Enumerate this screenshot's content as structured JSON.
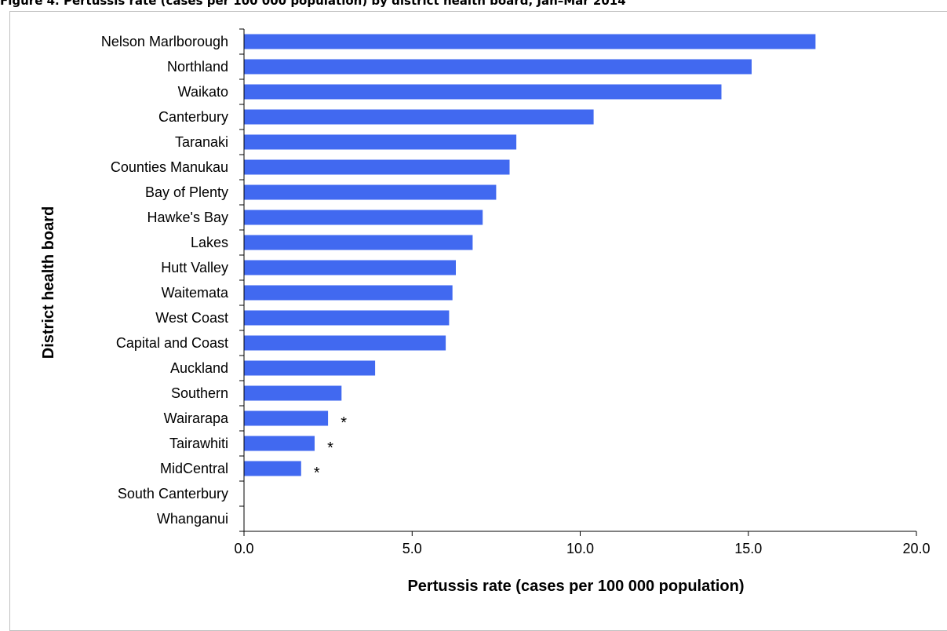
{
  "figure_title": "Figure 4. Pertussis rate (cases per 100 000 population) by district health board, Jan–Mar 2014",
  "colors": {
    "bar": "#4169f0",
    "axis": "#000000"
  },
  "chart_data": {
    "type": "bar",
    "orientation": "horizontal",
    "xlabel": "Pertussis rate (cases per 100 000 population)",
    "ylabel": "District health board",
    "xlim": [
      0,
      20
    ],
    "xticks": [
      "0.0",
      "5.0",
      "10.0",
      "15.0",
      "20.0"
    ],
    "grid": false,
    "categories": [
      "Nelson Marlborough",
      "Northland",
      "Waikato",
      "Canterbury",
      "Taranaki",
      "Counties Manukau",
      "Bay of Plenty",
      "Hawke's Bay",
      "Lakes",
      "Hutt Valley",
      "Waitemata",
      "West Coast",
      "Capital and Coast",
      "Auckland",
      "Southern",
      "Wairarapa",
      "Tairawhiti",
      "MidCentral",
      "South Canterbury",
      "Whanganui"
    ],
    "values": [
      17.0,
      15.1,
      14.2,
      10.4,
      8.1,
      7.9,
      7.5,
      7.1,
      6.8,
      6.3,
      6.2,
      6.1,
      6.0,
      3.9,
      2.9,
      2.5,
      2.1,
      1.7,
      0,
      0
    ],
    "annotations": [
      {
        "category": "Wairarapa",
        "text": "*"
      },
      {
        "category": "Tairawhiti",
        "text": "*"
      },
      {
        "category": "MidCentral",
        "text": "*"
      }
    ]
  }
}
